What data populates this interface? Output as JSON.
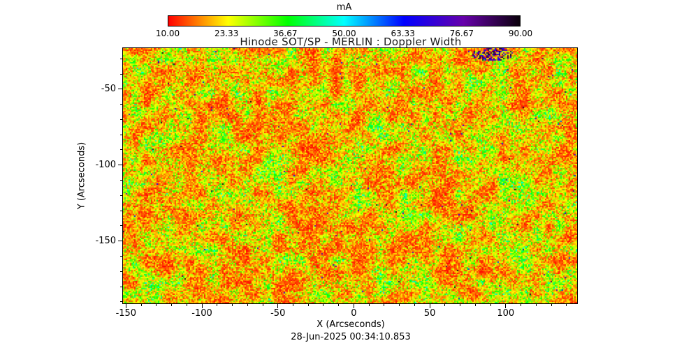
{
  "figure": {
    "background": "#ffffff"
  },
  "chart_data": {
    "type": "heatmap",
    "title": "Hinode SOT/SP - MERLIN : Doppler Width",
    "xlabel": "X (Arcseconds)",
    "ylabel": "Y (Arcseconds)",
    "caption": "28-Jun-2025 00:34:10.853",
    "xlim": [
      -152,
      147
    ],
    "ylim": [
      -191,
      -23
    ],
    "x_ticks": [
      "-150",
      "-100",
      "-50",
      "0",
      "50",
      "100"
    ],
    "x_tick_values": [
      -150,
      -100,
      -50,
      0,
      50,
      100
    ],
    "y_ticks": [
      "-50",
      "-100",
      "-150"
    ],
    "y_tick_values": [
      -50,
      -100,
      -150
    ],
    "minor_tick_step": 10,
    "grid": false,
    "colorbar": {
      "label": "mA",
      "min": 10,
      "max": 90,
      "tick_labels": [
        "10.00",
        "23.33",
        "36.67",
        "50.00",
        "63.33",
        "76.67",
        "90.00"
      ],
      "orientation": "horizontal-top",
      "gradient_stops": [
        {
          "pos": 0.0,
          "color": "#ff0000"
        },
        {
          "pos": 0.17,
          "color": "#ffff00"
        },
        {
          "pos": 0.34,
          "color": "#00ff00"
        },
        {
          "pos": 0.5,
          "color": "#00ffff"
        },
        {
          "pos": 0.67,
          "color": "#0000ff"
        },
        {
          "pos": 0.84,
          "color": "#6600aa"
        },
        {
          "pos": 1.0,
          "color": "#0a000a"
        }
      ]
    },
    "map": {
      "description": "Fine speckled solar Doppler-width map: values mostly 15-40 mA (red/orange/yellow/green), sparse cyan speckles 45-60 mA, rare dark pixels above 65 mA, small dark cluster near the top-right edge of the field.",
      "dominant_range_mA": [
        15,
        40
      ],
      "outlier_fraction": 0.0025,
      "speckle_size_px": 2,
      "seed": 20250628
    }
  }
}
